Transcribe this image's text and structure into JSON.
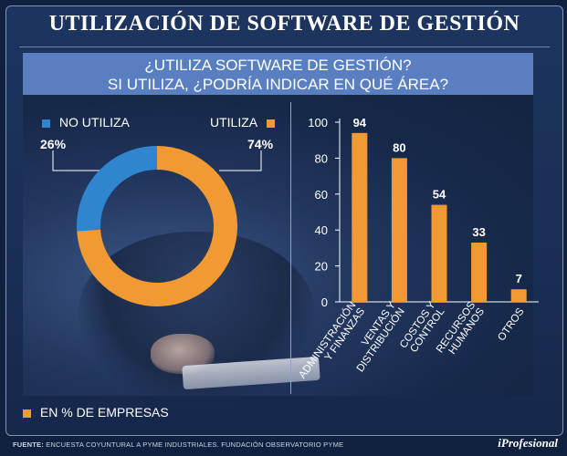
{
  "title": "UTILIZACIÓN DE SOFTWARE DE GESTIÓN",
  "question": {
    "line1": "¿UTILIZA SOFTWARE DE GESTIÓN?",
    "line2": "SI UTILIZA, ¿PODRÍA INDICAR EN QUÉ ÁREA?"
  },
  "colors": {
    "orange": "#f19a33",
    "blue": "#2f86cf",
    "grid": "#8fa3c8"
  },
  "chart_data": [
    {
      "type": "pie",
      "style": "donut",
      "labels": [
        "NO UTILIZA",
        "UTILIZA"
      ],
      "values": [
        26,
        74
      ],
      "value_labels": [
        "26%",
        "74%"
      ],
      "colors": [
        "#2f86cf",
        "#f19a33"
      ]
    },
    {
      "type": "bar",
      "categories": [
        [
          "ADMINISTRACIÓN",
          "Y FINANZAS"
        ],
        [
          "VENTAS Y",
          "DISTRIBUCIÓN"
        ],
        [
          "COSTOS Y",
          "CONTROL"
        ],
        [
          "RECURSOS",
          "HUMANOS"
        ],
        [
          "OTROS"
        ]
      ],
      "values": [
        94,
        80,
        54,
        33,
        7
      ],
      "yticks": [
        "0",
        "20",
        "40",
        "60",
        "80",
        "100"
      ],
      "ylim": [
        0,
        100
      ],
      "grid": false,
      "color": "#f19a33"
    }
  ],
  "legend_units": "EN % DE EMPRESAS",
  "source": {
    "label": "FUENTE:",
    "text": "ENCUESTA COYUNTURAL A PYME INDUSTRIALES. FUNDACIÓN OBSERVATORIO PYME"
  },
  "brand": "iProfesional"
}
